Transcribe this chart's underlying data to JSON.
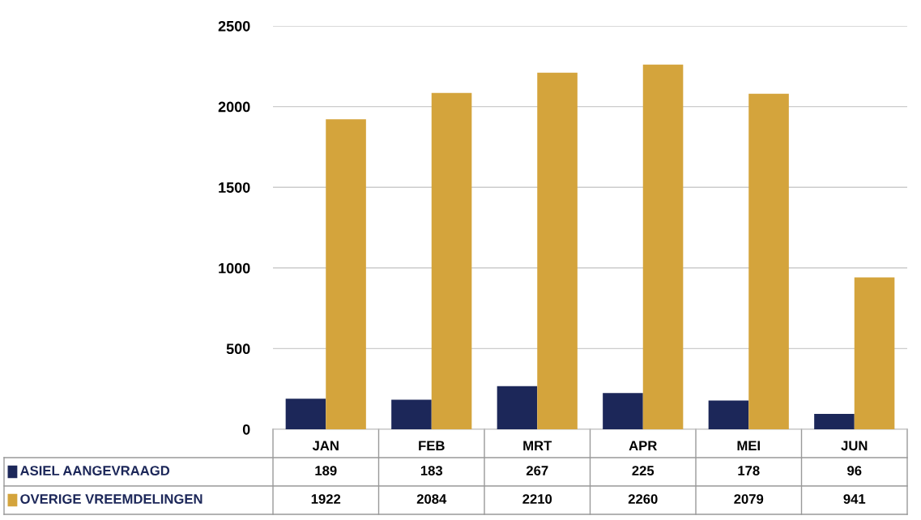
{
  "chart_data": {
    "type": "bar",
    "categories": [
      "JAN",
      "FEB",
      "MRT",
      "APR",
      "MEI",
      "JUN"
    ],
    "series": [
      {
        "name": "ASIEL AANGEVRAAGD",
        "color": "#1c2759",
        "values": [
          189,
          183,
          267,
          225,
          178,
          96
        ]
      },
      {
        "name": "OVERIGE VREEMDELINGEN",
        "color": "#d4a43c",
        "values": [
          1922,
          2084,
          2210,
          2260,
          2079,
          941
        ]
      }
    ],
    "ylim": [
      0,
      2500
    ],
    "yticks": [
      0,
      500,
      1000,
      1500,
      2000,
      2500
    ],
    "grid": "y",
    "legend": "bottom left",
    "data_labels": true
  }
}
